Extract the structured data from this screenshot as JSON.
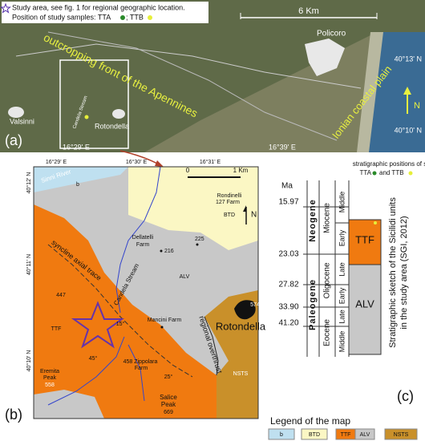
{
  "panel_a": {
    "legend_line1": "Study area, see fig. 1 for regional geographic location.",
    "legend_line2": "Position of study samples: TTA",
    "legend_line2b": "; TTB",
    "scale": "6 Km",
    "policoro": "Policoro",
    "lat_top": "40°13' N",
    "front": "outcropping front of the Apennines",
    "valsinni": "Valsinni",
    "stream": "Candela Stream",
    "rotondella": "Rotondella",
    "plain": "Ionian coastal plain",
    "north": "N",
    "lat_bottom": "40°10' N",
    "label": "(a)",
    "lon_left": "16°29' E",
    "lon_right": "16°39' E"
  },
  "panel_b": {
    "lon": [
      "16°29' E",
      "16°30' E",
      "16°31' E"
    ],
    "lat": [
      "40°12' N",
      "40°11' N",
      "40°10' N"
    ],
    "scale_zero": "0",
    "scale_km": "1 Km",
    "river": "Sinni River",
    "b": "b",
    "rondinelli": "Rondinelli",
    "rondinelli_farm": "127 Farm",
    "btd": "BTD",
    "north": "N",
    "dellatelli": "Dellatelli",
    "dellatelli_farm": "Farm",
    "h216": "216",
    "h225": "225",
    "alv": "ALV",
    "syncline": "syncline axial trace",
    "h447": "447",
    "stream": "Candela Stream",
    "ttf": "TTF",
    "mancini": "Mancini Farm",
    "h574": "574",
    "rotondella": "Rotondella",
    "overthrust": "regional overthrust",
    "nsts": "NSTS",
    "eremita": "Eremita",
    "eremita_peak": "Peak",
    "h558": "558",
    "dip45": "45°",
    "dip15": "15°",
    "zippolara": "458 Zippolara",
    "zippolara_farm": "Farm",
    "dip25": "25°",
    "salice": "Salice",
    "salice_peak": "Peak",
    "h669": "669",
    "label": "(b)"
  },
  "legend": {
    "title": "Legend of the map",
    "items": [
      "b",
      "BTD",
      "TTF",
      "ALV",
      "NSTS"
    ]
  },
  "panel_c": {
    "samples_line1": "stratigraphic positions of samples:",
    "samples_tta": "TTA",
    "samples_ttb": "and TTB",
    "ma": "Ma",
    "ages": [
      "15.97",
      "23.03",
      "27.82",
      "33.90",
      "41.20"
    ],
    "periods": [
      "Neogene",
      "Paleogene"
    ],
    "epochs": [
      "Miocene",
      "Oligocene",
      "Eocene"
    ],
    "subepochs": [
      "Middle",
      "Early",
      "Late",
      "Early",
      "Late",
      "Middle"
    ],
    "units": [
      "TTF",
      "ALV"
    ],
    "caption": [
      "Stratigraphic sketch of the Sicilidi units",
      "in the study area (SGI, 2012)"
    ],
    "label": "(c)"
  }
}
